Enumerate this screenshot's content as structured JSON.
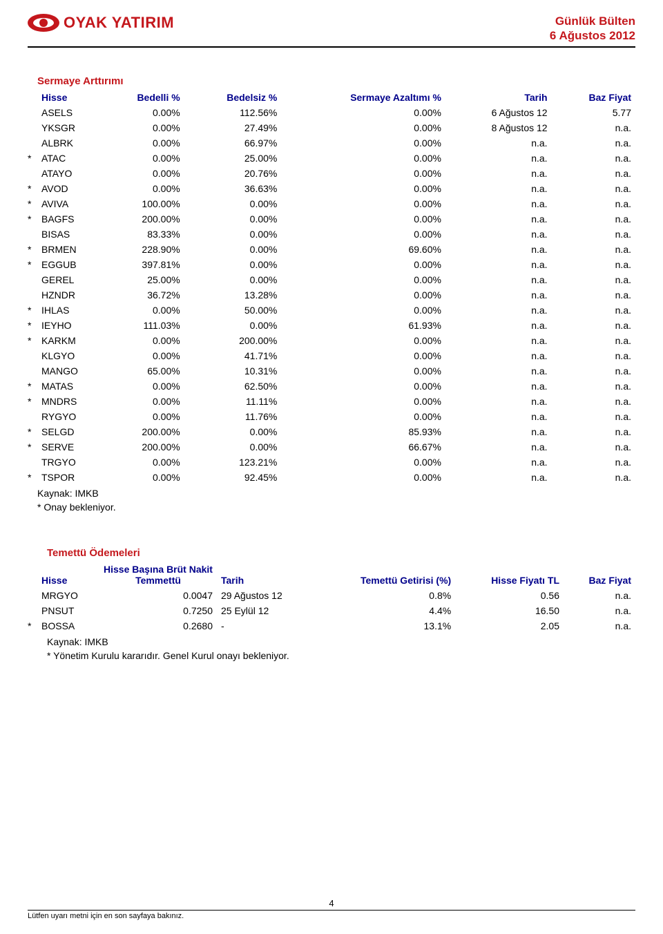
{
  "header": {
    "logo_text": "OYAK YATIRIM",
    "title": "Günlük Bülten",
    "date": "6 Ağustos 2012"
  },
  "table1": {
    "title": "Sermaye Arttırımı",
    "columns": [
      "Hisse",
      "Bedelli %",
      "Bedelsiz %",
      "Sermaye Azaltımı %",
      "Tarih",
      "Baz Fiyat"
    ],
    "rows": [
      {
        "mark": "",
        "ticker": "ASELS",
        "c1": "0.00%",
        "c2": "112.56%",
        "c3": "0.00%",
        "c4": "6 Ağustos 12",
        "c5": "5.77"
      },
      {
        "mark": "",
        "ticker": "YKSGR",
        "c1": "0.00%",
        "c2": "27.49%",
        "c3": "0.00%",
        "c4": "8 Ağustos 12",
        "c5": "n.a."
      },
      {
        "mark": "",
        "ticker": "ALBRK",
        "c1": "0.00%",
        "c2": "66.97%",
        "c3": "0.00%",
        "c4": "n.a.",
        "c5": "n.a."
      },
      {
        "mark": "*",
        "ticker": "ATAC",
        "c1": "0.00%",
        "c2": "25.00%",
        "c3": "0.00%",
        "c4": "n.a.",
        "c5": "n.a."
      },
      {
        "mark": "",
        "ticker": "ATAYO",
        "c1": "0.00%",
        "c2": "20.76%",
        "c3": "0.00%",
        "c4": "n.a.",
        "c5": "n.a."
      },
      {
        "mark": "*",
        "ticker": "AVOD",
        "c1": "0.00%",
        "c2": "36.63%",
        "c3": "0.00%",
        "c4": "n.a.",
        "c5": "n.a."
      },
      {
        "mark": "*",
        "ticker": "AVIVA",
        "c1": "100.00%",
        "c2": "0.00%",
        "c3": "0.00%",
        "c4": "n.a.",
        "c5": "n.a."
      },
      {
        "mark": "*",
        "ticker": "BAGFS",
        "c1": "200.00%",
        "c2": "0.00%",
        "c3": "0.00%",
        "c4": "n.a.",
        "c5": "n.a."
      },
      {
        "mark": "",
        "ticker": "BISAS",
        "c1": "83.33%",
        "c2": "0.00%",
        "c3": "0.00%",
        "c4": "n.a.",
        "c5": "n.a."
      },
      {
        "mark": "*",
        "ticker": "BRMEN",
        "c1": "228.90%",
        "c2": "0.00%",
        "c3": "69.60%",
        "c4": "n.a.",
        "c5": "n.a."
      },
      {
        "mark": "*",
        "ticker": "EGGUB",
        "c1": "397.81%",
        "c2": "0.00%",
        "c3": "0.00%",
        "c4": "n.a.",
        "c5": "n.a."
      },
      {
        "mark": "",
        "ticker": "GEREL",
        "c1": "25.00%",
        "c2": "0.00%",
        "c3": "0.00%",
        "c4": "n.a.",
        "c5": "n.a."
      },
      {
        "mark": "",
        "ticker": "HZNDR",
        "c1": "36.72%",
        "c2": "13.28%",
        "c3": "0.00%",
        "c4": "n.a.",
        "c5": "n.a."
      },
      {
        "mark": "*",
        "ticker": "IHLAS",
        "c1": "0.00%",
        "c2": "50.00%",
        "c3": "0.00%",
        "c4": "n.a.",
        "c5": "n.a."
      },
      {
        "mark": "*",
        "ticker": "IEYHO",
        "c1": "111.03%",
        "c2": "0.00%",
        "c3": "61.93%",
        "c4": "n.a.",
        "c5": "n.a."
      },
      {
        "mark": "*",
        "ticker": "KARKM",
        "c1": "0.00%",
        "c2": "200.00%",
        "c3": "0.00%",
        "c4": "n.a.",
        "c5": "n.a."
      },
      {
        "mark": "",
        "ticker": "KLGYO",
        "c1": "0.00%",
        "c2": "41.71%",
        "c3": "0.00%",
        "c4": "n.a.",
        "c5": "n.a."
      },
      {
        "mark": "",
        "ticker": "MANGO",
        "c1": "65.00%",
        "c2": "10.31%",
        "c3": "0.00%",
        "c4": "n.a.",
        "c5": "n.a."
      },
      {
        "mark": "*",
        "ticker": "MATAS",
        "c1": "0.00%",
        "c2": "62.50%",
        "c3": "0.00%",
        "c4": "n.a.",
        "c5": "n.a."
      },
      {
        "mark": "*",
        "ticker": "MNDRS",
        "c1": "0.00%",
        "c2": "11.11%",
        "c3": "0.00%",
        "c4": "n.a.",
        "c5": "n.a."
      },
      {
        "mark": "",
        "ticker": "RYGYO",
        "c1": "0.00%",
        "c2": "11.76%",
        "c3": "0.00%",
        "c4": "n.a.",
        "c5": "n.a."
      },
      {
        "mark": "*",
        "ticker": "SELGD",
        "c1": "200.00%",
        "c2": "0.00%",
        "c3": "85.93%",
        "c4": "n.a.",
        "c5": "n.a."
      },
      {
        "mark": "*",
        "ticker": "SERVE",
        "c1": "200.00%",
        "c2": "0.00%",
        "c3": "66.67%",
        "c4": "n.a.",
        "c5": "n.a."
      },
      {
        "mark": "",
        "ticker": "TRGYO",
        "c1": "0.00%",
        "c2": "123.21%",
        "c3": "0.00%",
        "c4": "n.a.",
        "c5": "n.a."
      },
      {
        "mark": "*",
        "ticker": "TSPOR",
        "c1": "0.00%",
        "c2": "92.45%",
        "c3": "0.00%",
        "c4": "n.a.",
        "c5": "n.a."
      }
    ],
    "source": "Kaynak: IMKB",
    "note": "* Onay bekleniyor."
  },
  "table2": {
    "title": "Temettü Ödemeleri",
    "columns": [
      "Hisse",
      "Hisse Başına  Brüt Nakit Temmettü",
      "Tarih",
      "Temettü Getirisi (%)",
      "Hisse Fiyatı TL",
      "Baz Fiyat"
    ],
    "rows": [
      {
        "mark": "",
        "ticker": "MRGYO",
        "c1": "0.0047",
        "c2": "29 Ağustos 12",
        "c3": "0.8%",
        "c4": "0.56",
        "c5": "n.a."
      },
      {
        "mark": "",
        "ticker": "PNSUT",
        "c1": "0.7250",
        "c2": "25 Eylül 12",
        "c3": "4.4%",
        "c4": "16.50",
        "c5": "n.a."
      },
      {
        "mark": "*",
        "ticker": "BOSSA",
        "c1": "0.2680",
        "c2": "-",
        "c3": "13.1%",
        "c4": "2.05",
        "c5": "n.a."
      }
    ],
    "source": "Kaynak: IMKB",
    "note": "* Yönetim Kurulu kararıdır. Genel Kurul onayı bekleniyor."
  },
  "footer": {
    "page": "4",
    "text": "Lütfen uyarı metni için en son sayfaya bakınız."
  },
  "colors": {
    "red": "#c4171c",
    "navy": "#00008b",
    "black": "#000000",
    "white": "#ffffff"
  }
}
